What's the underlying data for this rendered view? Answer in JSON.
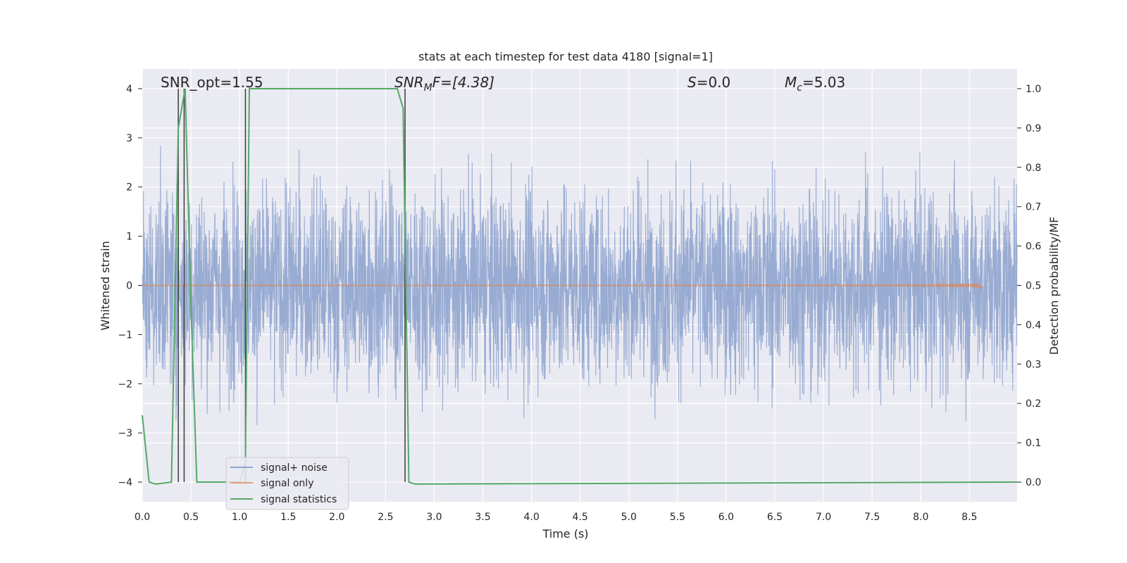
{
  "chart_data": {
    "type": "line",
    "title": "stats at each timestep for test data 4180 [signal=1]",
    "xlabel": "Time (s)",
    "ylabel_left": "Whitened strain",
    "ylabel_right": "Detection probability/MF",
    "xlim": [
      0.0,
      8.99
    ],
    "ylim_left": [
      -4.4,
      4.4
    ],
    "ylim_right": [
      -0.05,
      1.05
    ],
    "xticks": [
      "0.0",
      "0.5",
      "1.0",
      "1.5",
      "2.0",
      "2.5",
      "3.0",
      "3.5",
      "4.0",
      "4.5",
      "5.0",
      "5.5",
      "6.0",
      "6.5",
      "7.0",
      "7.5",
      "8.0",
      "8.5"
    ],
    "yticks_left": [
      "4",
      "3",
      "2",
      "1",
      "0",
      "−1",
      "−2",
      "−3",
      "−4"
    ],
    "yticks_right": [
      "1.0",
      "0.9",
      "0.8",
      "0.7",
      "0.6",
      "0.5",
      "0.4",
      "0.3",
      "0.2",
      "0.1",
      "0.0"
    ],
    "grid": true,
    "legend_placement": "lower-left",
    "annotations": {
      "snr_opt": "SNR_opt=1.55",
      "snr_mf_base": "SNR",
      "snr_mf_sub": "M",
      "snr_mf_rest": "F=[4.38]",
      "s_var": "S",
      "s_rest": "=0.0",
      "mc_base": "M",
      "mc_sub": "c",
      "mc_rest": "=5.03"
    },
    "series": [
      {
        "name": "signal+ noise",
        "color": "#8fa4ce",
        "noise_sigma": 1.0,
        "extent": [
          0.0,
          8.99
        ]
      },
      {
        "name": "signal only",
        "color": "#dd8452",
        "end_time": 8.65,
        "max_amplitude": 0.1
      },
      {
        "name": "signal statistics",
        "color": "#55a868",
        "points": [
          [
            0.0,
            0.17
          ],
          [
            0.07,
            0.0
          ],
          [
            0.14,
            -0.005
          ],
          [
            0.3,
            0.0
          ],
          [
            0.37,
            0.9
          ],
          [
            0.44,
            1.0
          ],
          [
            0.5,
            0.45
          ],
          [
            0.56,
            0.0
          ],
          [
            1.0,
            0.0
          ],
          [
            1.06,
            0.05
          ],
          [
            1.1,
            1.0
          ],
          [
            2.62,
            1.0
          ],
          [
            2.68,
            0.95
          ],
          [
            2.74,
            0.0
          ],
          [
            2.8,
            -0.005
          ],
          [
            8.99,
            0.0
          ]
        ]
      }
    ],
    "vertical_markers": [
      0.37,
      0.43,
      1.06,
      2.7
    ],
    "marker_color": "#3c3c3c"
  }
}
